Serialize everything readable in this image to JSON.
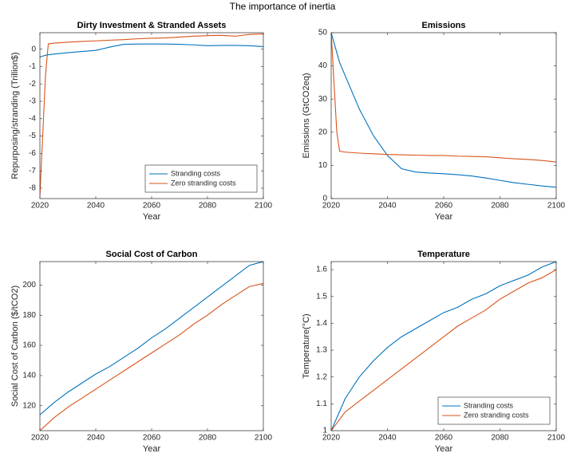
{
  "title": "The importance of inertia",
  "chart_data": [
    {
      "type": "line",
      "title": "Dirty Investment & Stranded Assets",
      "x_label": "Year",
      "y_label": "Repurposing/stranding (Trillion$)",
      "x": [
        2020,
        2021,
        2022,
        2023,
        2025,
        2030,
        2035,
        2040,
        2045,
        2050,
        2055,
        2060,
        2065,
        2070,
        2075,
        2080,
        2085,
        2090,
        2095,
        2100
      ],
      "series": [
        {
          "name": "Stranding costs",
          "color": "#0072bd",
          "values": [
            -0.45,
            -0.4,
            -0.35,
            -0.32,
            -0.28,
            -0.2,
            -0.13,
            -0.07,
            0.12,
            0.28,
            0.3,
            0.3,
            0.3,
            0.28,
            0.25,
            0.2,
            0.22,
            0.22,
            0.2,
            0.15
          ]
        },
        {
          "name": "Zero stranding costs",
          "color": "#d95319",
          "values": [
            -8.4,
            -5,
            -1.5,
            0.3,
            0.35,
            0.4,
            0.45,
            0.48,
            0.52,
            0.55,
            0.6,
            0.63,
            0.65,
            0.7,
            0.75,
            0.78,
            0.8,
            0.75,
            0.85,
            0.88
          ]
        }
      ],
      "xlim": [
        2020,
        2100
      ],
      "xticks": [
        2020,
        2040,
        2060,
        2080,
        2100
      ],
      "ylim": [
        -8.6,
        0.95
      ],
      "yticks": [
        -8,
        -7,
        -6,
        -5,
        -4,
        -3,
        -2,
        -1,
        0
      ],
      "legend": "lower right"
    },
    {
      "type": "line",
      "title": "Emissions",
      "x_label": "Year",
      "y_label": "Emissions (GtCO2eq)",
      "x": [
        2020,
        2021,
        2022,
        2023,
        2025,
        2030,
        2035,
        2040,
        2045,
        2050,
        2055,
        2060,
        2065,
        2070,
        2075,
        2080,
        2085,
        2090,
        2095,
        2100
      ],
      "series": [
        {
          "color": "#0072bd",
          "values": [
            50,
            47,
            44,
            41,
            37,
            27,
            19,
            13,
            9,
            8,
            7.7,
            7.5,
            7.2,
            6.8,
            6.2,
            5.5,
            4.8,
            4.3,
            3.8,
            3.4
          ]
        },
        {
          "color": "#d95319",
          "values": [
            50,
            35,
            20,
            14.3,
            14,
            13.7,
            13.5,
            13.3,
            13.2,
            13.1,
            13,
            13,
            12.8,
            12.7,
            12.6,
            12.3,
            12,
            11.8,
            11.5,
            11
          ]
        }
      ],
      "xlim": [
        2020,
        2100
      ],
      "xticks": [
        2020,
        2040,
        2060,
        2080,
        2100
      ],
      "ylim": [
        0,
        50
      ],
      "yticks": [
        0,
        10,
        20,
        30,
        40,
        50
      ]
    },
    {
      "type": "line",
      "title": "Social Cost of Carbon",
      "x_label": "Year",
      "y_label": "Social Cost of Carbon ($/tCO2)",
      "x": [
        2020,
        2025,
        2030,
        2035,
        2040,
        2045,
        2050,
        2055,
        2060,
        2065,
        2070,
        2075,
        2080,
        2085,
        2090,
        2095,
        2100
      ],
      "series": [
        {
          "color": "#0072bd",
          "values": [
            114,
            122,
            129,
            135,
            141,
            146,
            152,
            158,
            165,
            171,
            178,
            185,
            192,
            199,
            206,
            213,
            215.5
          ]
        },
        {
          "color": "#d95319",
          "values": [
            103.5,
            112,
            119,
            125,
            131,
            137,
            143,
            149,
            155,
            161,
            167,
            174,
            180,
            187,
            193,
            199,
            201
          ]
        }
      ],
      "xlim": [
        2020,
        2100
      ],
      "xticks": [
        2020,
        2040,
        2060,
        2080,
        2100
      ],
      "ylim": [
        103.5,
        215.5
      ],
      "yticks": [
        120,
        140,
        160,
        180,
        200
      ]
    },
    {
      "type": "line",
      "title": "Temperature",
      "x_label": "Year",
      "y_label": "Temperature(°C)",
      "x": [
        2020,
        2025,
        2030,
        2035,
        2040,
        2045,
        2050,
        2055,
        2060,
        2065,
        2070,
        2075,
        2080,
        2085,
        2090,
        2095,
        2100
      ],
      "series": [
        {
          "name": "Stranding costs",
          "color": "#0072bd",
          "values": [
            1,
            1.12,
            1.2,
            1.26,
            1.31,
            1.35,
            1.38,
            1.41,
            1.44,
            1.46,
            1.49,
            1.51,
            1.54,
            1.56,
            1.58,
            1.61,
            1.63
          ]
        },
        {
          "name": "Zero stranding costs",
          "color": "#d95319",
          "values": [
            1,
            1.07,
            1.11,
            1.15,
            1.19,
            1.23,
            1.27,
            1.31,
            1.35,
            1.39,
            1.42,
            1.45,
            1.49,
            1.52,
            1.55,
            1.57,
            1.6
          ]
        }
      ],
      "xlim": [
        2020,
        2100
      ],
      "xticks": [
        2020,
        2040,
        2060,
        2080,
        2100
      ],
      "ylim": [
        1,
        1.63
      ],
      "yticks": [
        1,
        1.1,
        1.2,
        1.3,
        1.4,
        1.5,
        1.6
      ],
      "legend": "lower right"
    }
  ]
}
